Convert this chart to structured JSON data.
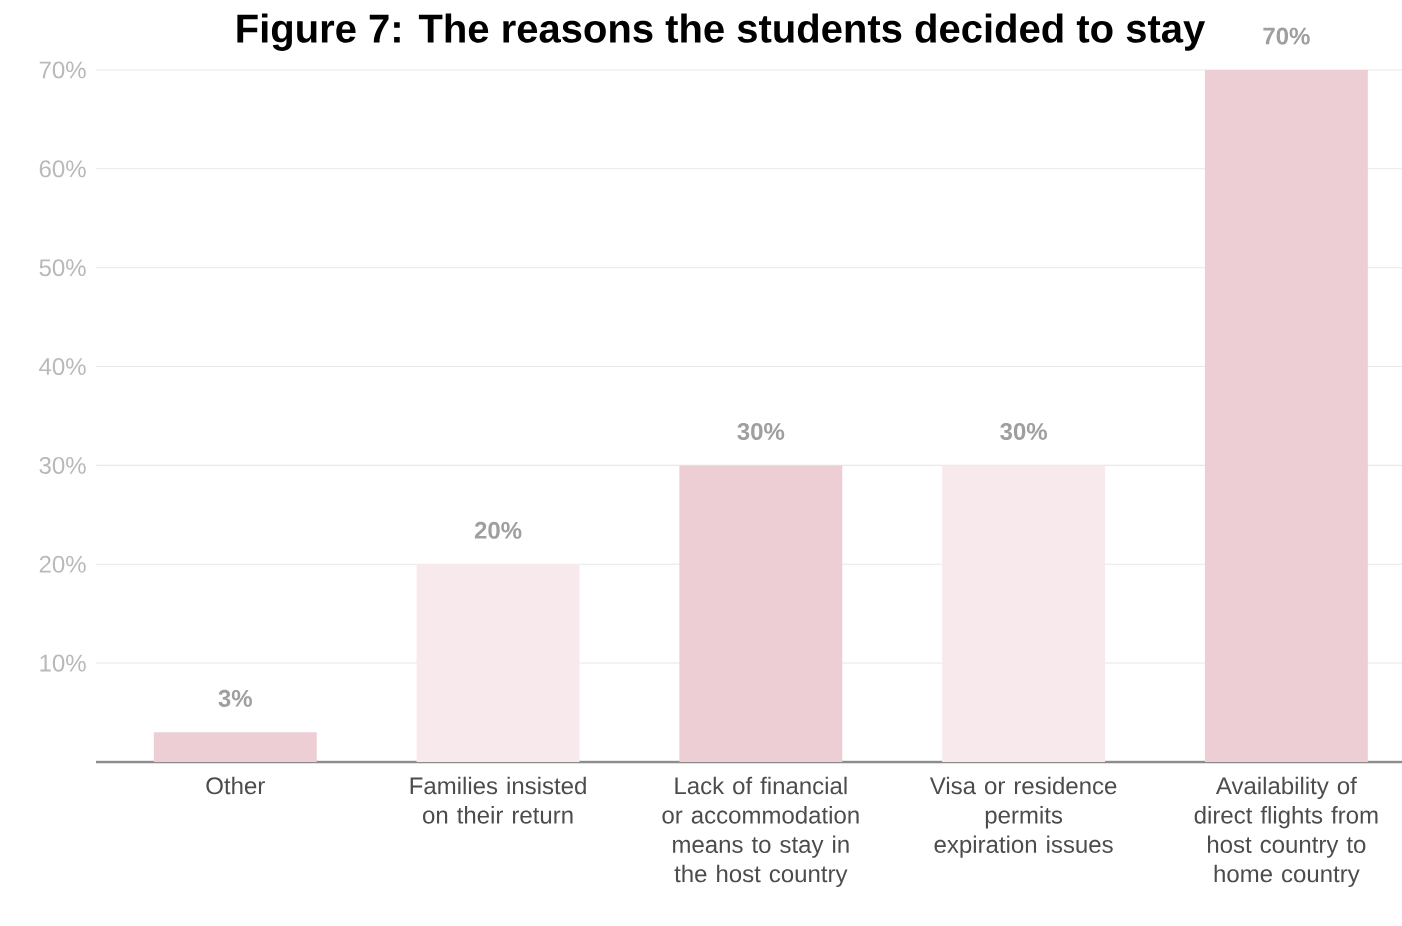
{
  "chart_data": {
    "type": "bar",
    "title": "Figure 7: The reasons the students decided to stay",
    "categories": [
      "Other",
      "Families insisted on their return",
      "Lack of financial or accommodation means to stay in the host country",
      "Visa or residence permits expiration issues",
      "Availability of direct flights from host country to home country"
    ],
    "values": [
      3,
      20,
      30,
      30,
      70
    ],
    "value_labels": [
      "3%",
      "20%",
      "30%",
      "30%",
      "70%"
    ],
    "colors": [
      "#ecced4",
      "#f8eaec",
      "#ecced4",
      "#f8eaec",
      "#ecced4"
    ],
    "ylim": [
      0,
      70
    ],
    "yticks": [
      {
        "value": 10,
        "label": "10%"
      },
      {
        "value": 20,
        "label": "20%"
      },
      {
        "value": 30,
        "label": "30%"
      },
      {
        "value": 40,
        "label": "40%"
      },
      {
        "value": 50,
        "label": "50%"
      },
      {
        "value": 60,
        "label": "60%"
      },
      {
        "value": 70,
        "label": "70%"
      }
    ],
    "grid": "y"
  }
}
